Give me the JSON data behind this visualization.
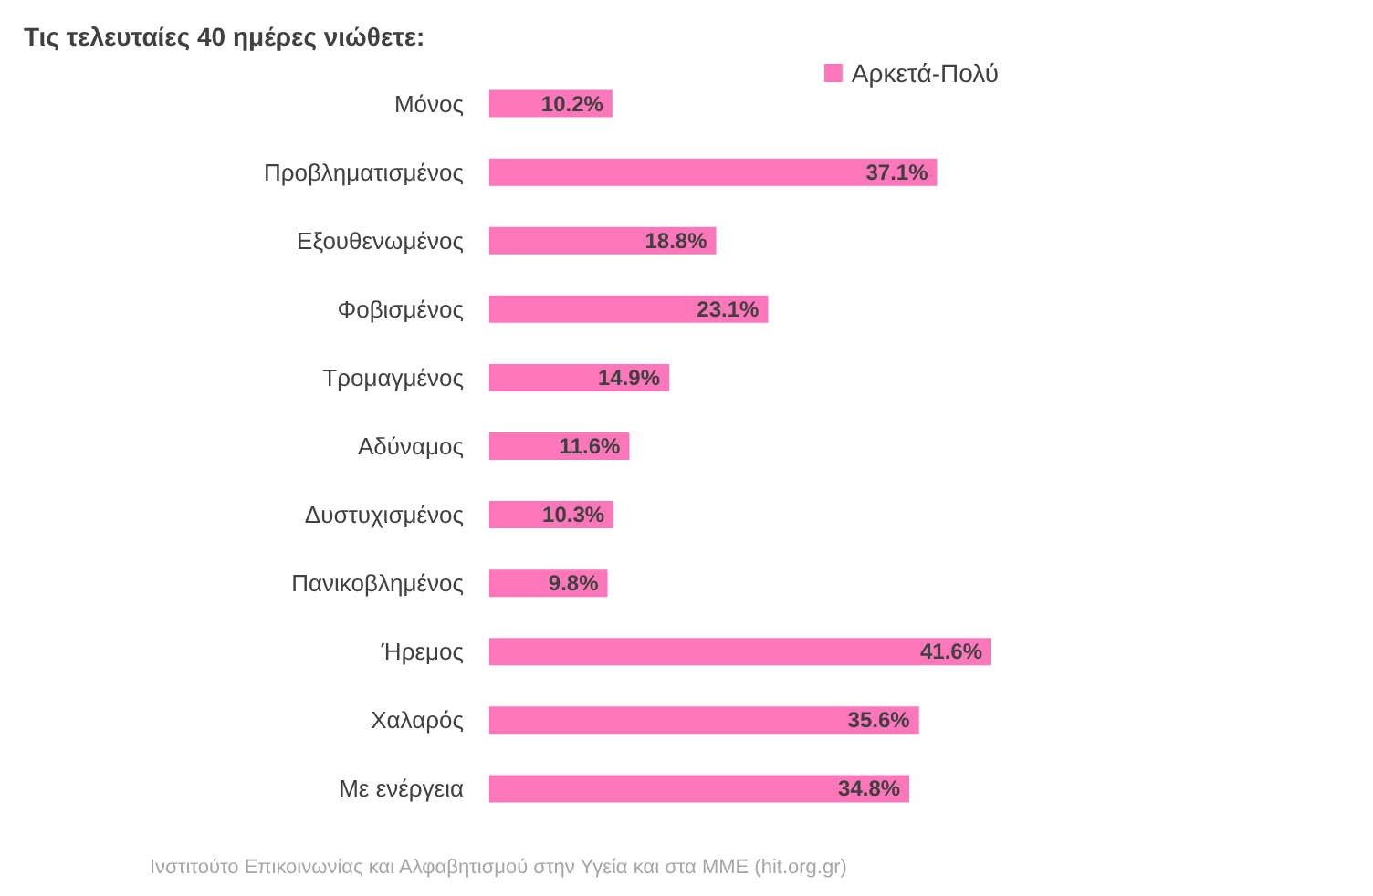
{
  "chart_data": {
    "type": "bar",
    "orientation": "horizontal",
    "title": "Τις τελευταίες 40 ημέρες νιώθετε:",
    "categories": [
      "Μόνος",
      "Προβληματισμένος",
      "Εξουθενωμένος",
      "Φοβισμένος",
      "Τρομαγμένος",
      "Αδύναμος",
      "Δυστυχισμένος",
      "Πανικοβλημένος",
      "Ήρεμος",
      "Χαλαρός",
      "Με ενέργεια"
    ],
    "series": [
      {
        "name": "Αρκετά-Πολύ",
        "color": "#ff77bb",
        "values": [
          10.2,
          37.1,
          18.8,
          23.1,
          14.9,
          11.6,
          10.3,
          9.8,
          41.6,
          35.6,
          34.8
        ],
        "value_labels": [
          "10.2%",
          "37.1%",
          "18.8%",
          "23.1%",
          "14.9%",
          "11.6%",
          "10.3%",
          "9.8%",
          "41.6%",
          "35.6%",
          "34.8%"
        ]
      }
    ],
    "legend": "top right",
    "grid": false,
    "tick_labels": "y",
    "annotations": [
      "Ινστιτούτο Επικοινωνίας και Αλφαβητισμού στην Υγεία και στα ΜΜΕ (hit.org.gr)"
    ]
  }
}
